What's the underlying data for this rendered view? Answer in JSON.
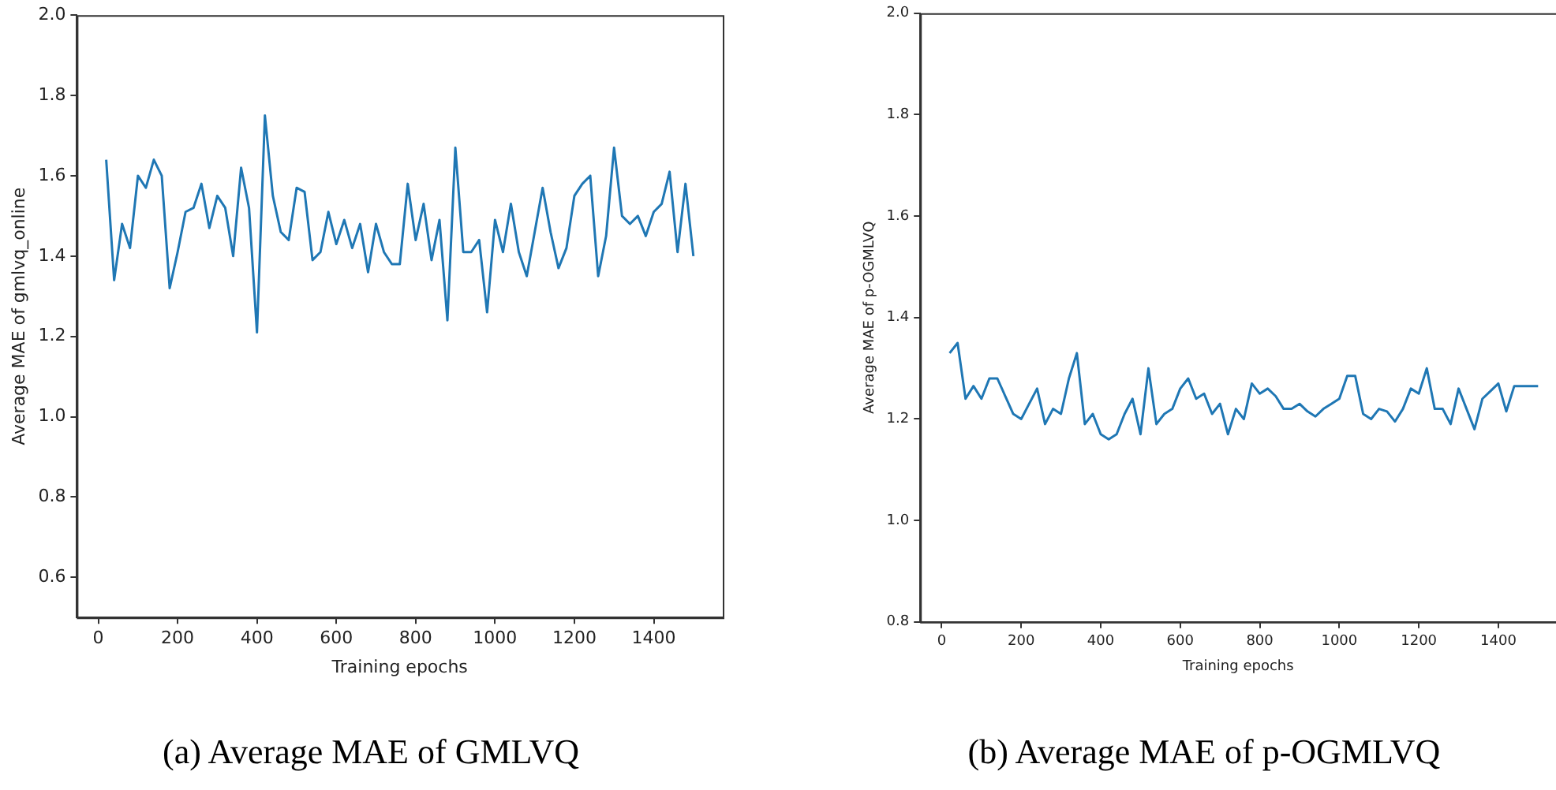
{
  "chart_data": [
    {
      "type": "line",
      "title": "(a) Average MAE of GMLVQ",
      "xlabel": "Training epochs",
      "ylabel": "Average MAE of gmlvq_online",
      "x": [
        20,
        40,
        60,
        80,
        100,
        120,
        140,
        160,
        180,
        200,
        220,
        240,
        260,
        280,
        300,
        320,
        340,
        360,
        380,
        400,
        420,
        440,
        460,
        480,
        500,
        520,
        540,
        560,
        580,
        600,
        620,
        640,
        660,
        680,
        700,
        720,
        740,
        760,
        780,
        800,
        820,
        840,
        860,
        880,
        900,
        920,
        940,
        960,
        980,
        1000,
        1020,
        1040,
        1060,
        1080,
        1100,
        1120,
        1140,
        1160,
        1180,
        1200,
        1220,
        1240,
        1260,
        1280,
        1300,
        1320,
        1340,
        1360,
        1380,
        1400,
        1420,
        1440,
        1460,
        1480,
        1500
      ],
      "series": [
        {
          "color": "#1f77b4",
          "values": [
            1.64,
            1.34,
            1.48,
            1.42,
            1.6,
            1.57,
            1.64,
            1.6,
            1.32,
            1.41,
            1.51,
            1.52,
            1.58,
            1.47,
            1.55,
            1.52,
            1.4,
            1.62,
            1.52,
            1.21,
            1.75,
            1.55,
            1.46,
            1.44,
            1.57,
            1.56,
            1.39,
            1.41,
            1.51,
            1.43,
            1.49,
            1.42,
            1.48,
            1.36,
            1.48,
            1.41,
            1.38,
            1.38,
            1.58,
            1.44,
            1.53,
            1.39,
            1.49,
            1.24,
            1.67,
            1.41,
            1.41,
            1.44,
            1.26,
            1.49,
            1.41,
            1.53,
            1.41,
            1.35,
            1.46,
            1.57,
            1.46,
            1.37,
            1.42,
            1.55,
            1.58,
            1.6,
            1.35,
            1.45,
            1.67,
            1.5,
            1.48,
            1.5,
            1.45,
            1.51,
            1.53,
            1.61,
            1.41,
            1.58,
            1.4
          ]
        }
      ],
      "xlim": [
        -54,
        1574
      ],
      "ylim": [
        0.5,
        2.0
      ],
      "xticks": [
        0,
        200,
        400,
        600,
        800,
        1000,
        1200,
        1400
      ],
      "yticks": [
        {
          "value": 0.6,
          "label": "0.6"
        },
        {
          "value": 0.8,
          "label": "0.8"
        },
        {
          "value": 1.0,
          "label": "1.0"
        },
        {
          "value": 1.2,
          "label": "1.2"
        },
        {
          "value": 1.4,
          "label": "1.4"
        },
        {
          "value": 1.6,
          "label": "1.6"
        },
        {
          "value": 1.8,
          "label": "1.8"
        },
        {
          "value": 2.0,
          "label": "2.0"
        }
      ]
    },
    {
      "type": "line",
      "title": "(b) Average MAE of p-OGMLVQ",
      "xlabel": "Training epochs",
      "ylabel": "Average MAE of p-OGMLVQ",
      "x": [
        20,
        40,
        60,
        80,
        100,
        120,
        140,
        160,
        180,
        200,
        220,
        240,
        260,
        280,
        300,
        320,
        340,
        360,
        380,
        400,
        420,
        440,
        460,
        480,
        500,
        520,
        540,
        560,
        580,
        600,
        620,
        640,
        660,
        680,
        700,
        720,
        740,
        760,
        780,
        800,
        820,
        840,
        860,
        880,
        900,
        920,
        940,
        960,
        980,
        1000,
        1020,
        1040,
        1060,
        1080,
        1100,
        1120,
        1140,
        1160,
        1180,
        1200,
        1220,
        1240,
        1260,
        1280,
        1300,
        1320,
        1340,
        1360,
        1380,
        1400,
        1420,
        1440,
        1460,
        1480,
        1500
      ],
      "series": [
        {
          "color": "#1f77b4",
          "values": [
            1.33,
            1.35,
            1.24,
            1.265,
            1.24,
            1.28,
            1.28,
            1.245,
            1.21,
            1.2,
            1.23,
            1.26,
            1.19,
            1.22,
            1.21,
            1.28,
            1.33,
            1.19,
            1.21,
            1.17,
            1.16,
            1.17,
            1.21,
            1.24,
            1.17,
            1.3,
            1.19,
            1.21,
            1.22,
            1.26,
            1.28,
            1.24,
            1.25,
            1.21,
            1.23,
            1.17,
            1.22,
            1.2,
            1.27,
            1.25,
            1.26,
            1.245,
            1.22,
            1.22,
            1.23,
            1.215,
            1.205,
            1.22,
            1.23,
            1.24,
            1.285,
            1.285,
            1.21,
            1.2,
            1.22,
            1.215,
            1.195,
            1.22,
            1.26,
            1.25,
            1.3,
            1.22,
            1.22,
            1.19,
            1.26,
            1.22,
            1.18,
            1.24,
            1.255,
            1.27,
            1.215,
            1.265,
            1.265,
            1.265,
            1.265
          ]
        }
      ],
      "xlim": [
        -54,
        1545
      ],
      "ylim": [
        0.8,
        2.0
      ],
      "xticks": [
        0,
        200,
        400,
        600,
        800,
        1000,
        1200,
        1400
      ],
      "yticks": [
        {
          "value": 0.8,
          "label": "0.8"
        },
        {
          "value": 1.0,
          "label": "1.0"
        },
        {
          "value": 1.2,
          "label": "1.2"
        },
        {
          "value": 1.4,
          "label": "1.4"
        },
        {
          "value": 1.6,
          "label": "1.6"
        },
        {
          "value": 1.8,
          "label": "1.8"
        },
        {
          "value": 2.0,
          "label": "2.0"
        }
      ]
    }
  ]
}
